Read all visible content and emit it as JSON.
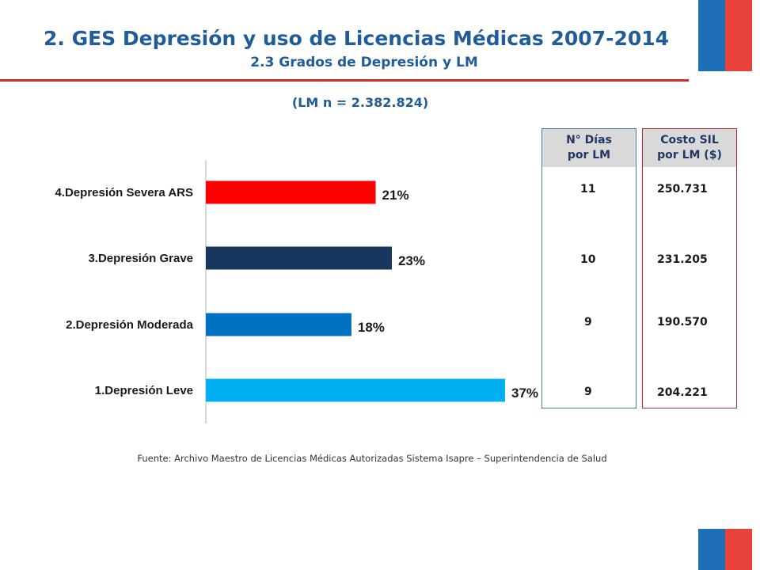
{
  "header": {
    "title": "2. GES Depresión y uso de Licencias Médicas 2007-2014",
    "subtitle": "2.3 Grados de Depresión y LM",
    "sample_label": "(LM n = 2.382.824)"
  },
  "colors": {
    "title": "#1f5c99",
    "rule": "#d62b2b",
    "flag_blue": "#1f6fb8",
    "flag_red": "#e8423b"
  },
  "chart_data": {
    "type": "bar",
    "orientation": "horizontal",
    "categories": [
      "4.Depresión Severa ARS",
      "3.Depresión Grave",
      "2.Depresión Moderada",
      "1.Depresión Leve"
    ],
    "values": [
      21,
      23,
      18,
      37
    ],
    "value_labels": [
      "21%",
      "23%",
      "18%",
      "37%"
    ],
    "bar_colors": [
      "#ff0000",
      "#17375e",
      "#0070c0",
      "#00b0f0"
    ],
    "xlim": [
      0,
      37
    ],
    "unit": "%",
    "grid": false
  },
  "tables": {
    "dias": {
      "header": [
        "N° Días",
        "por LM"
      ],
      "values": [
        "11",
        "10",
        "9",
        "9"
      ]
    },
    "costo": {
      "header": [
        "Costo SIL",
        "por LM ($)"
      ],
      "values": [
        "250.731",
        "231.205",
        "190.570",
        "204.221"
      ]
    }
  },
  "footer": {
    "source": "Fuente: Archivo Maestro de Licencias Médicas Autorizadas Sistema Isapre – Superintendencia de Salud"
  }
}
